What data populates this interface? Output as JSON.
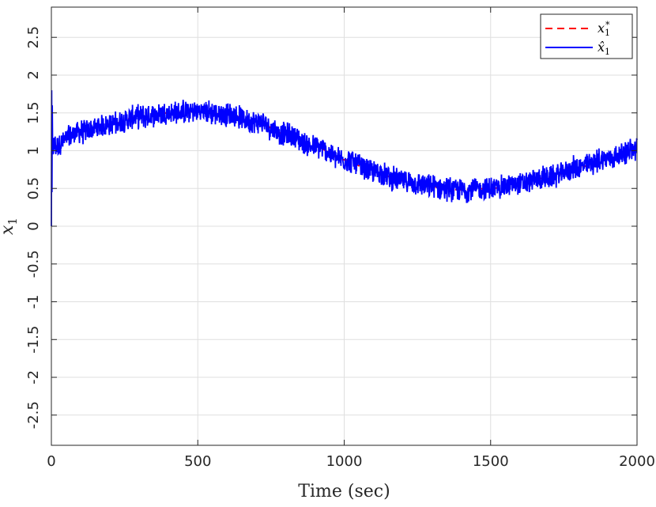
{
  "chart_data": {
    "type": "line",
    "title": "",
    "xlabel": "Time (sec)",
    "ylabel_symbol": "x",
    "ylabel_subscript": "1",
    "xlim": [
      0,
      2000
    ],
    "ylim": [
      -2.9,
      2.9
    ],
    "x_ticks": [
      0,
      500,
      1000,
      1500,
      2000
    ],
    "x_tick_labels": [
      "0",
      "500",
      "1000",
      "1500",
      "2000"
    ],
    "y_ticks": [
      -2.5,
      -2,
      -1.5,
      -1,
      -0.5,
      0,
      0.5,
      1,
      1.5,
      2,
      2.5
    ],
    "y_tick_labels": [
      "-2.5",
      "-2",
      "-1.5",
      "-1",
      "-0.5",
      "0",
      "0.5",
      "1",
      "1.5",
      "2",
      "2.5"
    ],
    "grid": true,
    "legend_position": "top-right",
    "series": [
      {
        "name": "x1*",
        "legend_symbol": "x",
        "legend_sub": "1",
        "legend_sup": "*",
        "color": "#ff0000",
        "style": "dashed",
        "x": [
          0,
          100,
          200,
          300,
          400,
          500,
          600,
          700,
          800,
          900,
          1000,
          1100,
          1200,
          1300,
          1400,
          1500,
          1600,
          1700,
          1800,
          1900,
          2000
        ],
        "y": [
          1.05,
          1.25,
          1.35,
          1.45,
          1.5,
          1.52,
          1.48,
          1.38,
          1.22,
          1.05,
          0.88,
          0.72,
          0.6,
          0.52,
          0.48,
          0.5,
          0.56,
          0.65,
          0.78,
          0.9,
          1.02
        ]
      },
      {
        "name": "x1 hat",
        "legend_symbol": "x̂",
        "legend_sub": "1",
        "legend_sup": "",
        "color": "#0000ff",
        "style": "solid",
        "x": [
          0,
          100,
          200,
          300,
          400,
          500,
          600,
          700,
          800,
          900,
          1000,
          1100,
          1200,
          1300,
          1400,
          1500,
          1600,
          1700,
          1800,
          1900,
          2000
        ],
        "y": [
          1.05,
          1.25,
          1.35,
          1.45,
          1.5,
          1.52,
          1.48,
          1.38,
          1.22,
          1.05,
          0.88,
          0.72,
          0.6,
          0.52,
          0.48,
          0.5,
          0.56,
          0.65,
          0.78,
          0.9,
          1.02
        ],
        "noise_amplitude": 0.15
      }
    ]
  }
}
